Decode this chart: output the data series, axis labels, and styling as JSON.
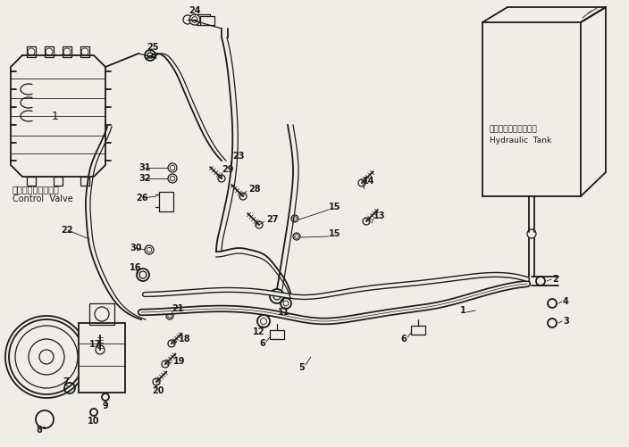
{
  "bg_color": "#f0ede8",
  "line_color": "#1a1a1a",
  "fig_width": 7.04,
  "fig_height": 5.01,
  "dpi": 100,
  "control_valve_label_jp": "コントロールバルブ",
  "control_valve_label_en": "Control  Valve",
  "hydraulic_tank_label_jp": "ハイドロリックタンク",
  "hydraulic_tank_label_en": "Hydraulic  Tank"
}
